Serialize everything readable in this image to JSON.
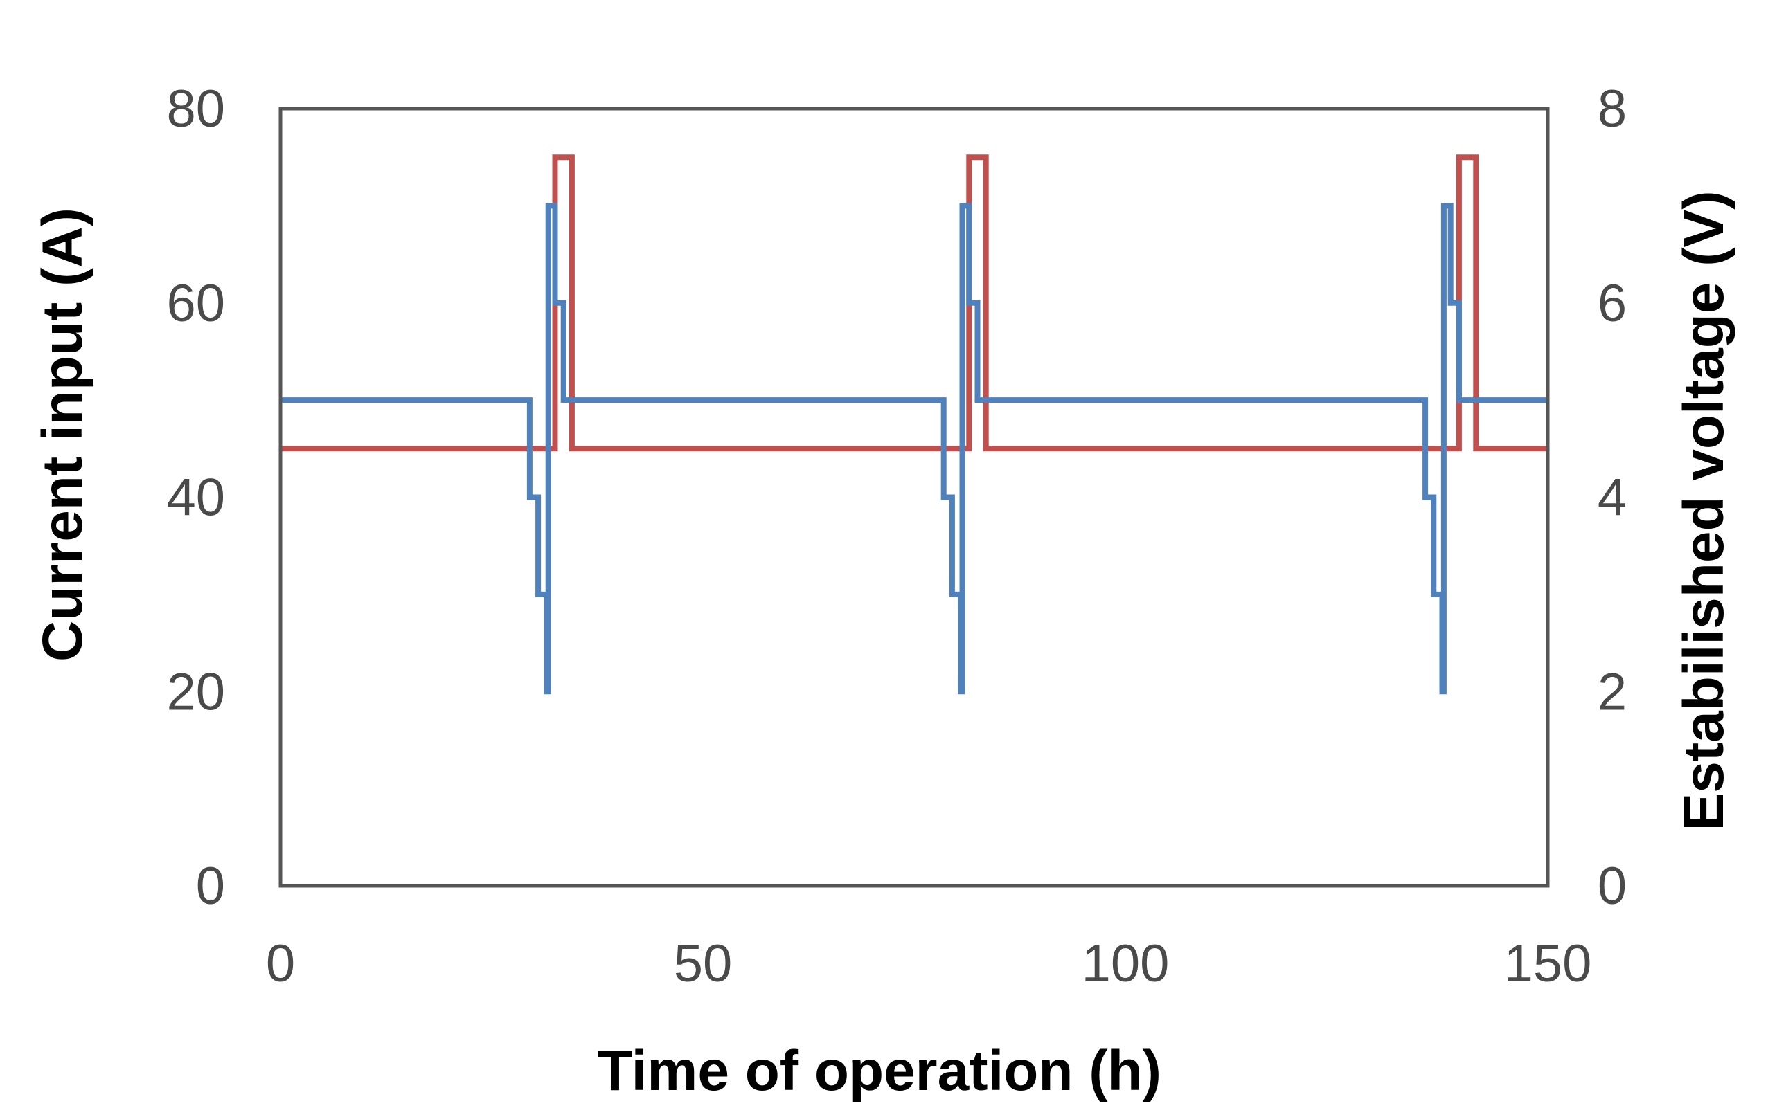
{
  "chart_data": {
    "type": "line",
    "xlabel": "Time of operation (h)",
    "ylabel_left": "Current input (A)",
    "ylabel_right": "Estabilished voltage (V)",
    "xlim": [
      0,
      150
    ],
    "ylim_left": [
      0,
      80
    ],
    "ylim_right": [
      0,
      8
    ],
    "x_ticks": [
      "0",
      "50",
      "100",
      "150"
    ],
    "y_left_ticks": [
      "0",
      "20",
      "40",
      "60",
      "80"
    ],
    "y_right_ticks": [
      "0",
      "2",
      "4",
      "6",
      "8"
    ],
    "grid": false,
    "legend": "none",
    "series": [
      {
        "axis": "left",
        "color": "#c0504d",
        "points": [
          [
            0,
            45
          ],
          [
            32.5,
            45
          ],
          [
            32.5,
            75
          ],
          [
            34.5,
            75
          ],
          [
            34.5,
            45
          ],
          [
            81.5,
            45
          ],
          [
            81.5,
            75
          ],
          [
            83.5,
            75
          ],
          [
            83.5,
            45
          ],
          [
            139.5,
            45
          ],
          [
            139.5,
            75
          ],
          [
            141.5,
            75
          ],
          [
            141.5,
            45
          ],
          [
            150,
            45
          ]
        ]
      },
      {
        "axis": "right",
        "color": "#4f81bd",
        "points": [
          [
            0,
            5
          ],
          [
            29.5,
            5
          ],
          [
            29.5,
            4
          ],
          [
            30.5,
            4
          ],
          [
            30.5,
            3
          ],
          [
            31.5,
            3
          ],
          [
            31.5,
            2
          ],
          [
            31.7,
            2
          ],
          [
            31.7,
            7
          ],
          [
            32.5,
            7
          ],
          [
            32.5,
            6
          ],
          [
            33.5,
            6
          ],
          [
            33.5,
            5
          ],
          [
            78.5,
            5
          ],
          [
            78.5,
            4
          ],
          [
            79.5,
            4
          ],
          [
            79.5,
            3
          ],
          [
            80.5,
            3
          ],
          [
            80.5,
            2
          ],
          [
            80.7,
            2
          ],
          [
            80.7,
            7
          ],
          [
            81.5,
            7
          ],
          [
            81.5,
            6
          ],
          [
            82.5,
            6
          ],
          [
            82.5,
            5
          ],
          [
            135.5,
            5
          ],
          [
            135.5,
            4
          ],
          [
            136.5,
            4
          ],
          [
            136.5,
            3
          ],
          [
            137.5,
            3
          ],
          [
            137.5,
            2
          ],
          [
            137.7,
            2
          ],
          [
            137.7,
            7
          ],
          [
            138.5,
            7
          ],
          [
            138.5,
            6
          ],
          [
            139.5,
            6
          ],
          [
            139.5,
            5
          ],
          [
            150,
            5
          ]
        ]
      }
    ]
  }
}
